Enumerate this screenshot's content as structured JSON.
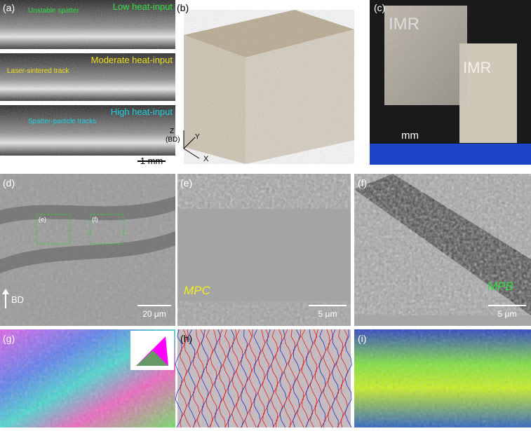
{
  "panels": {
    "a": {
      "label": "(a)",
      "strips": [
        {
          "title": "Low heat-input",
          "note": "Unstable spatter"
        },
        {
          "title": "Moderate heat-input",
          "note": "Laser-sintered track"
        },
        {
          "title": "High heat-input",
          "note": "Spatter-particle tracks"
        }
      ],
      "scale": "1 mm"
    },
    "b": {
      "label": "(b)",
      "axes": {
        "z": "Z",
        "bd": "(BD)",
        "y": "Y",
        "x": "X"
      }
    },
    "c": {
      "label": "(c)",
      "engraving": "IMR",
      "scale": "mm"
    },
    "d": {
      "label": "(d)",
      "boxes": [
        "(e)",
        "(f)"
      ],
      "direction": "BD",
      "scale": "20 μm"
    },
    "e": {
      "label": "(e)",
      "region": "MPC",
      "scale": "5 μm"
    },
    "f": {
      "label": "(f)",
      "region": "MPB",
      "scale": "5 μm"
    },
    "g": {
      "label": "(g)"
    },
    "h": {
      "label": "(h)"
    },
    "i": {
      "label": "(i)"
    }
  }
}
